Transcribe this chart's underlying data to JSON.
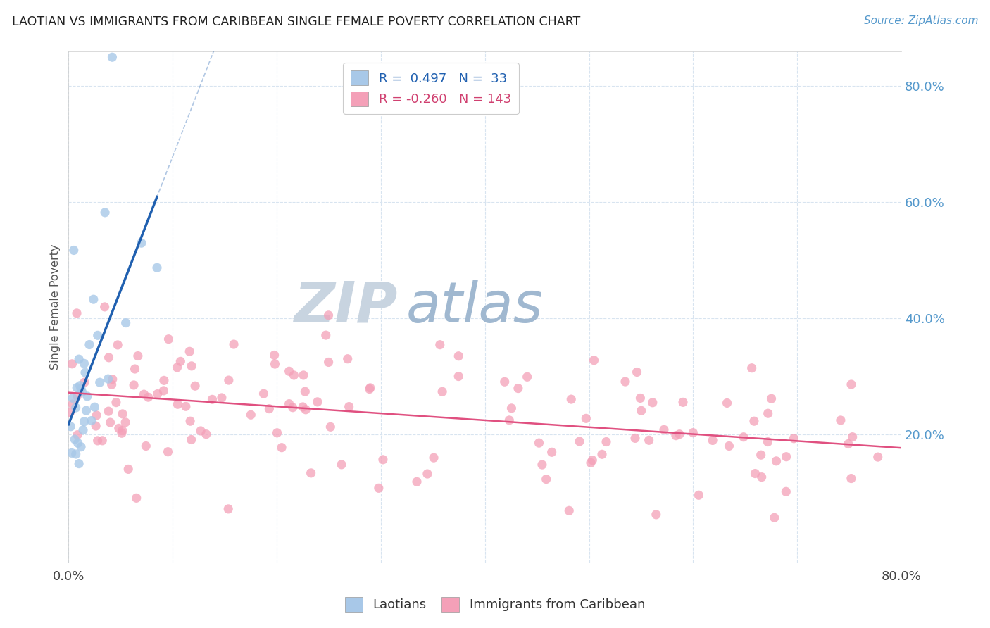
{
  "title": "LAOTIAN VS IMMIGRANTS FROM CARIBBEAN SINGLE FEMALE POVERTY CORRELATION CHART",
  "source": "Source: ZipAtlas.com",
  "ylabel": "Single Female Poverty",
  "r1": 0.497,
  "n1": 33,
  "r2": -0.26,
  "n2": 143,
  "blue_color": "#a8c8e8",
  "pink_color": "#f4a0b8",
  "blue_line_color": "#2060b0",
  "pink_line_color": "#e05080",
  "watermark_zip_color": "#c8d4e0",
  "watermark_atlas_color": "#a0b8d0",
  "background_color": "#ffffff",
  "grid_color": "#d8e4f0",
  "right_axis_color": "#5599cc",
  "xmin": 0.0,
  "xmax": 0.8,
  "ymin": -0.02,
  "ymax": 0.86,
  "grid_yticks": [
    0.2,
    0.4,
    0.6,
    0.8
  ],
  "grid_xticks": [
    0.0,
    0.1,
    0.2,
    0.3,
    0.4,
    0.5,
    0.6,
    0.7,
    0.8
  ],
  "seed": 7
}
